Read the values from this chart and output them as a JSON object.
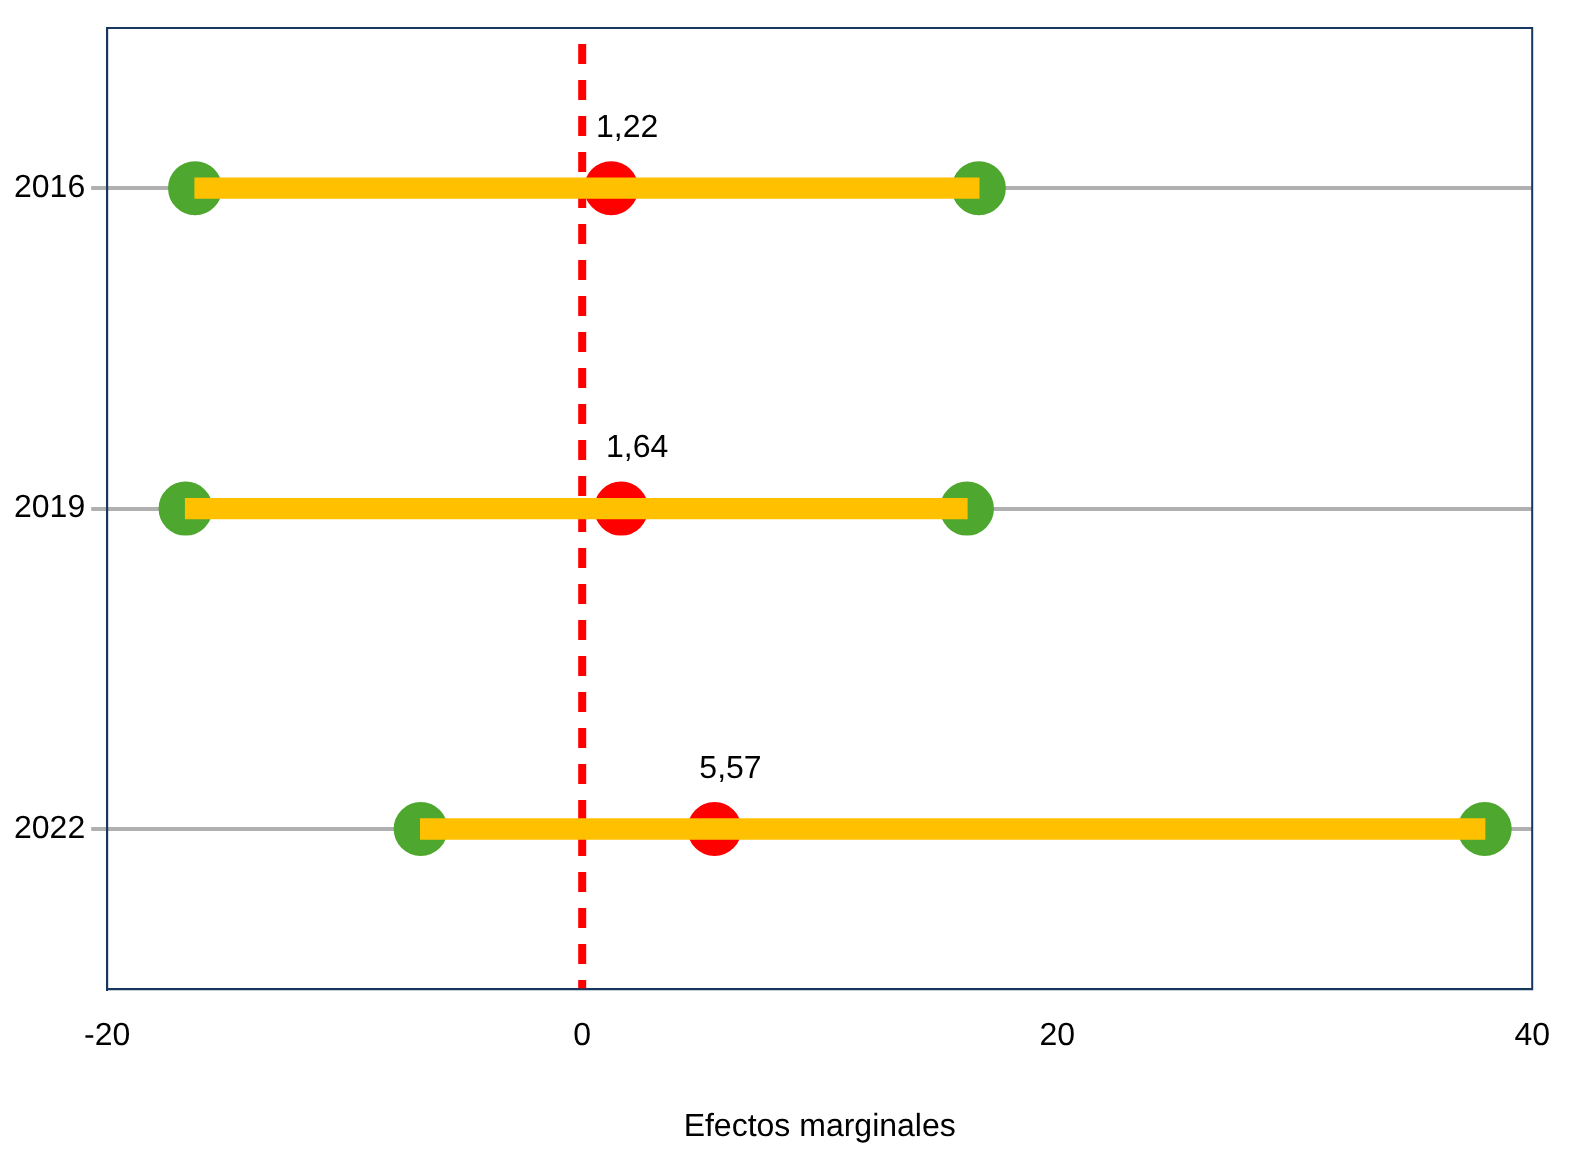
{
  "chart_data": {
    "type": "bar",
    "orientation": "horizontal",
    "xlabel": "Efectos marginales",
    "categories": [
      "2016",
      "2019",
      "2022"
    ],
    "series": [
      {
        "color": "#ffc000",
        "base": [
          -16.3,
          -16.7,
          -6.8
        ],
        "values": [
          33.0,
          32.9,
          44.8
        ]
      },
      {
        "type": "scatter",
        "color": "#4ea72e",
        "values": [
          -16.3,
          -16.7,
          -6.8
        ]
      },
      {
        "type": "scatter",
        "color": "#4ea72e",
        "values": [
          16.7,
          16.2,
          38
        ]
      },
      {
        "type": "scatter",
        "color": "#ff0000",
        "values": [
          1.22,
          1.64,
          5.57
        ],
        "value_labels": [
          "1,22",
          "1,64",
          "5,57"
        ]
      }
    ],
    "xlim": [
      -20,
      40
    ],
    "xticks": [
      -20,
      0,
      20,
      40
    ],
    "grid": "y",
    "legend": false,
    "marker": "circle",
    "ref_lines": [
      {
        "axis": "x",
        "value": 0,
        "color": "#ff0000",
        "line_style": "dashed"
      }
    ]
  }
}
